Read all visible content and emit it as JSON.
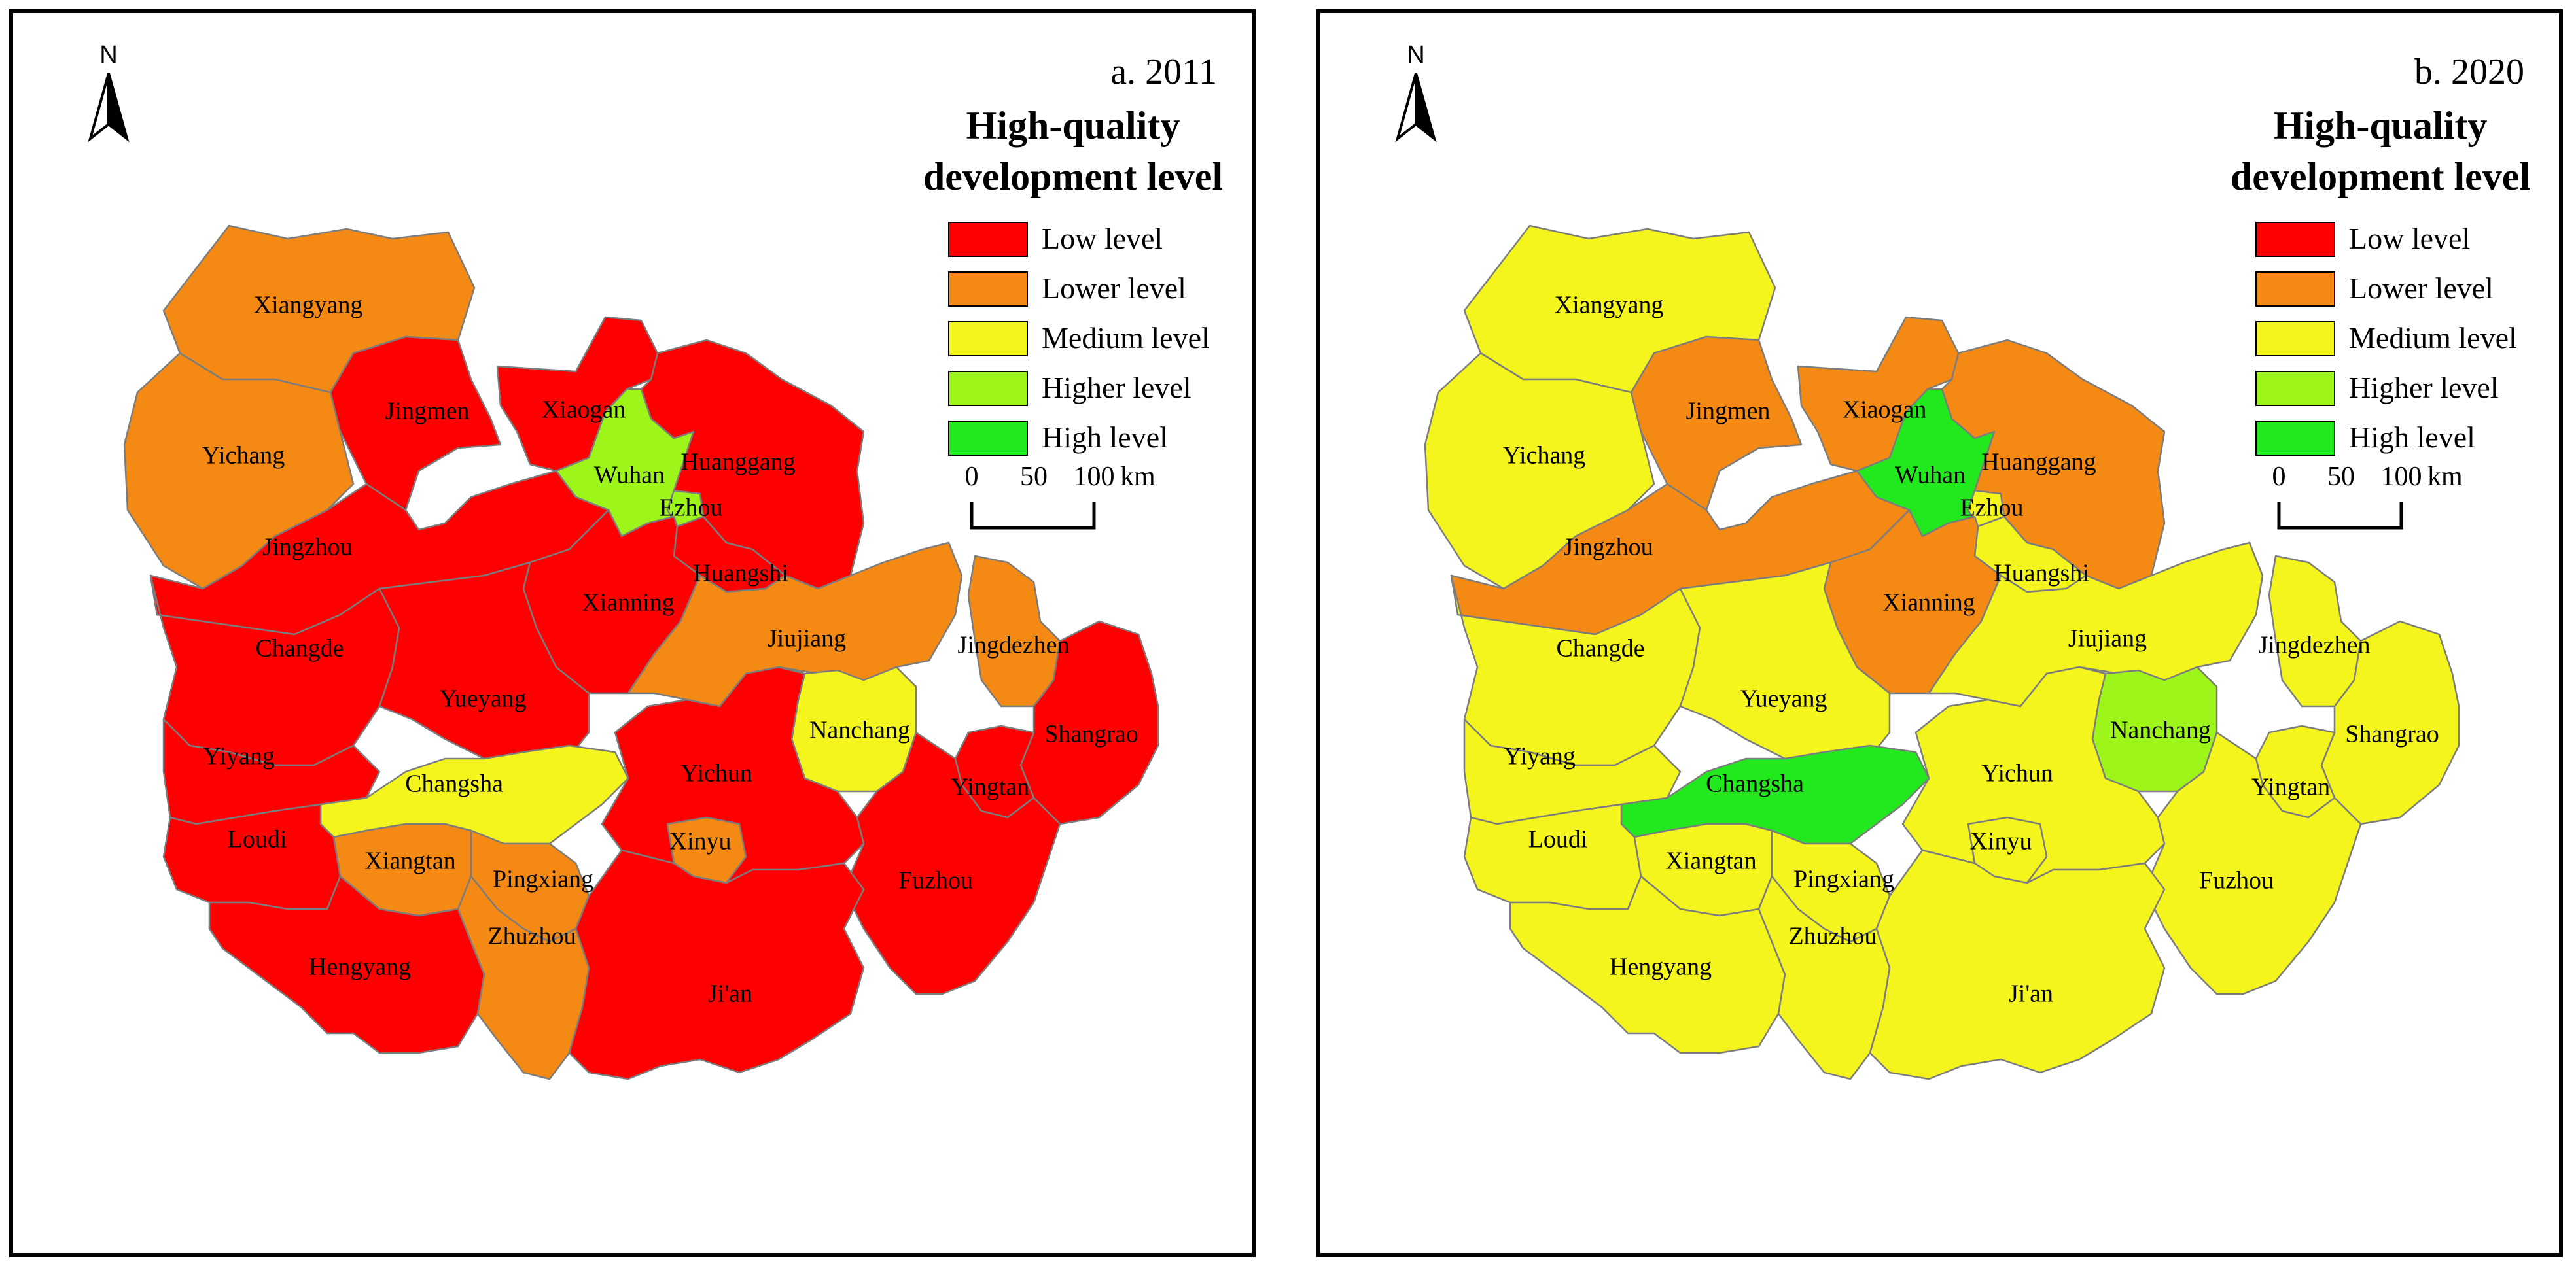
{
  "colors": {
    "low": "#ff0000",
    "lower": "#f48a14",
    "medium": "#f5f51e",
    "higher": "#9ef51a",
    "high": "#22e81e",
    "boundary": "#7c7c7c",
    "frame": "#000000"
  },
  "legend": {
    "title_line1": "High-quality",
    "title_line2": "development level",
    "items": [
      {
        "key": "low",
        "label": "Low level"
      },
      {
        "key": "lower",
        "label": "Lower level"
      },
      {
        "key": "medium",
        "label": "Medium level"
      },
      {
        "key": "higher",
        "label": "Higher level"
      },
      {
        "key": "high",
        "label": "High level"
      }
    ]
  },
  "scalebar": {
    "ticks": [
      "0",
      "50",
      "100"
    ],
    "unit": "km"
  },
  "north_arrow": {
    "label": "N",
    "icon": "north-arrow-icon"
  },
  "maps": [
    {
      "title": "a. 2011",
      "levels": {
        "Xiangyang": "lower",
        "Yichang": "lower",
        "Jingmen": "low",
        "Xiaogan": "low",
        "Wuhan": "higher",
        "Ezhou": "higher",
        "Huanggang": "low",
        "Jingzhou": "low",
        "Huangshi": "low",
        "Xianning": "low",
        "Changde": "low",
        "Yueyang": "low",
        "Jiujiang": "lower",
        "Jingdezhen": "lower",
        "Nanchang": "medium",
        "Shangrao": "low",
        "Yiyang": "low",
        "Changsha": "medium",
        "Yichun": "low",
        "Yingtan": "low",
        "Loudi": "low",
        "Xiangtan": "lower",
        "Pingxiang": "lower",
        "Xinyu": "lower",
        "Fuzhou": "low",
        "Hengyang": "low",
        "Zhuzhou": "lower",
        "Ji'an": "low"
      }
    },
    {
      "title": "b. 2020",
      "levels": {
        "Xiangyang": "medium",
        "Yichang": "medium",
        "Jingmen": "lower",
        "Xiaogan": "lower",
        "Wuhan": "high",
        "Ezhou": "medium",
        "Huanggang": "lower",
        "Jingzhou": "lower",
        "Huangshi": "medium",
        "Xianning": "lower",
        "Changde": "medium",
        "Yueyang": "medium",
        "Jiujiang": "medium",
        "Jingdezhen": "medium",
        "Nanchang": "higher",
        "Shangrao": "medium",
        "Yiyang": "medium",
        "Changsha": "high",
        "Yichun": "medium",
        "Yingtan": "medium",
        "Loudi": "medium",
        "Xiangtan": "medium",
        "Pingxiang": "medium",
        "Xinyu": "medium",
        "Fuzhou": "medium",
        "Hengyang": "medium",
        "Zhuzhou": "medium",
        "Ji'an": "medium"
      }
    }
  ]
}
